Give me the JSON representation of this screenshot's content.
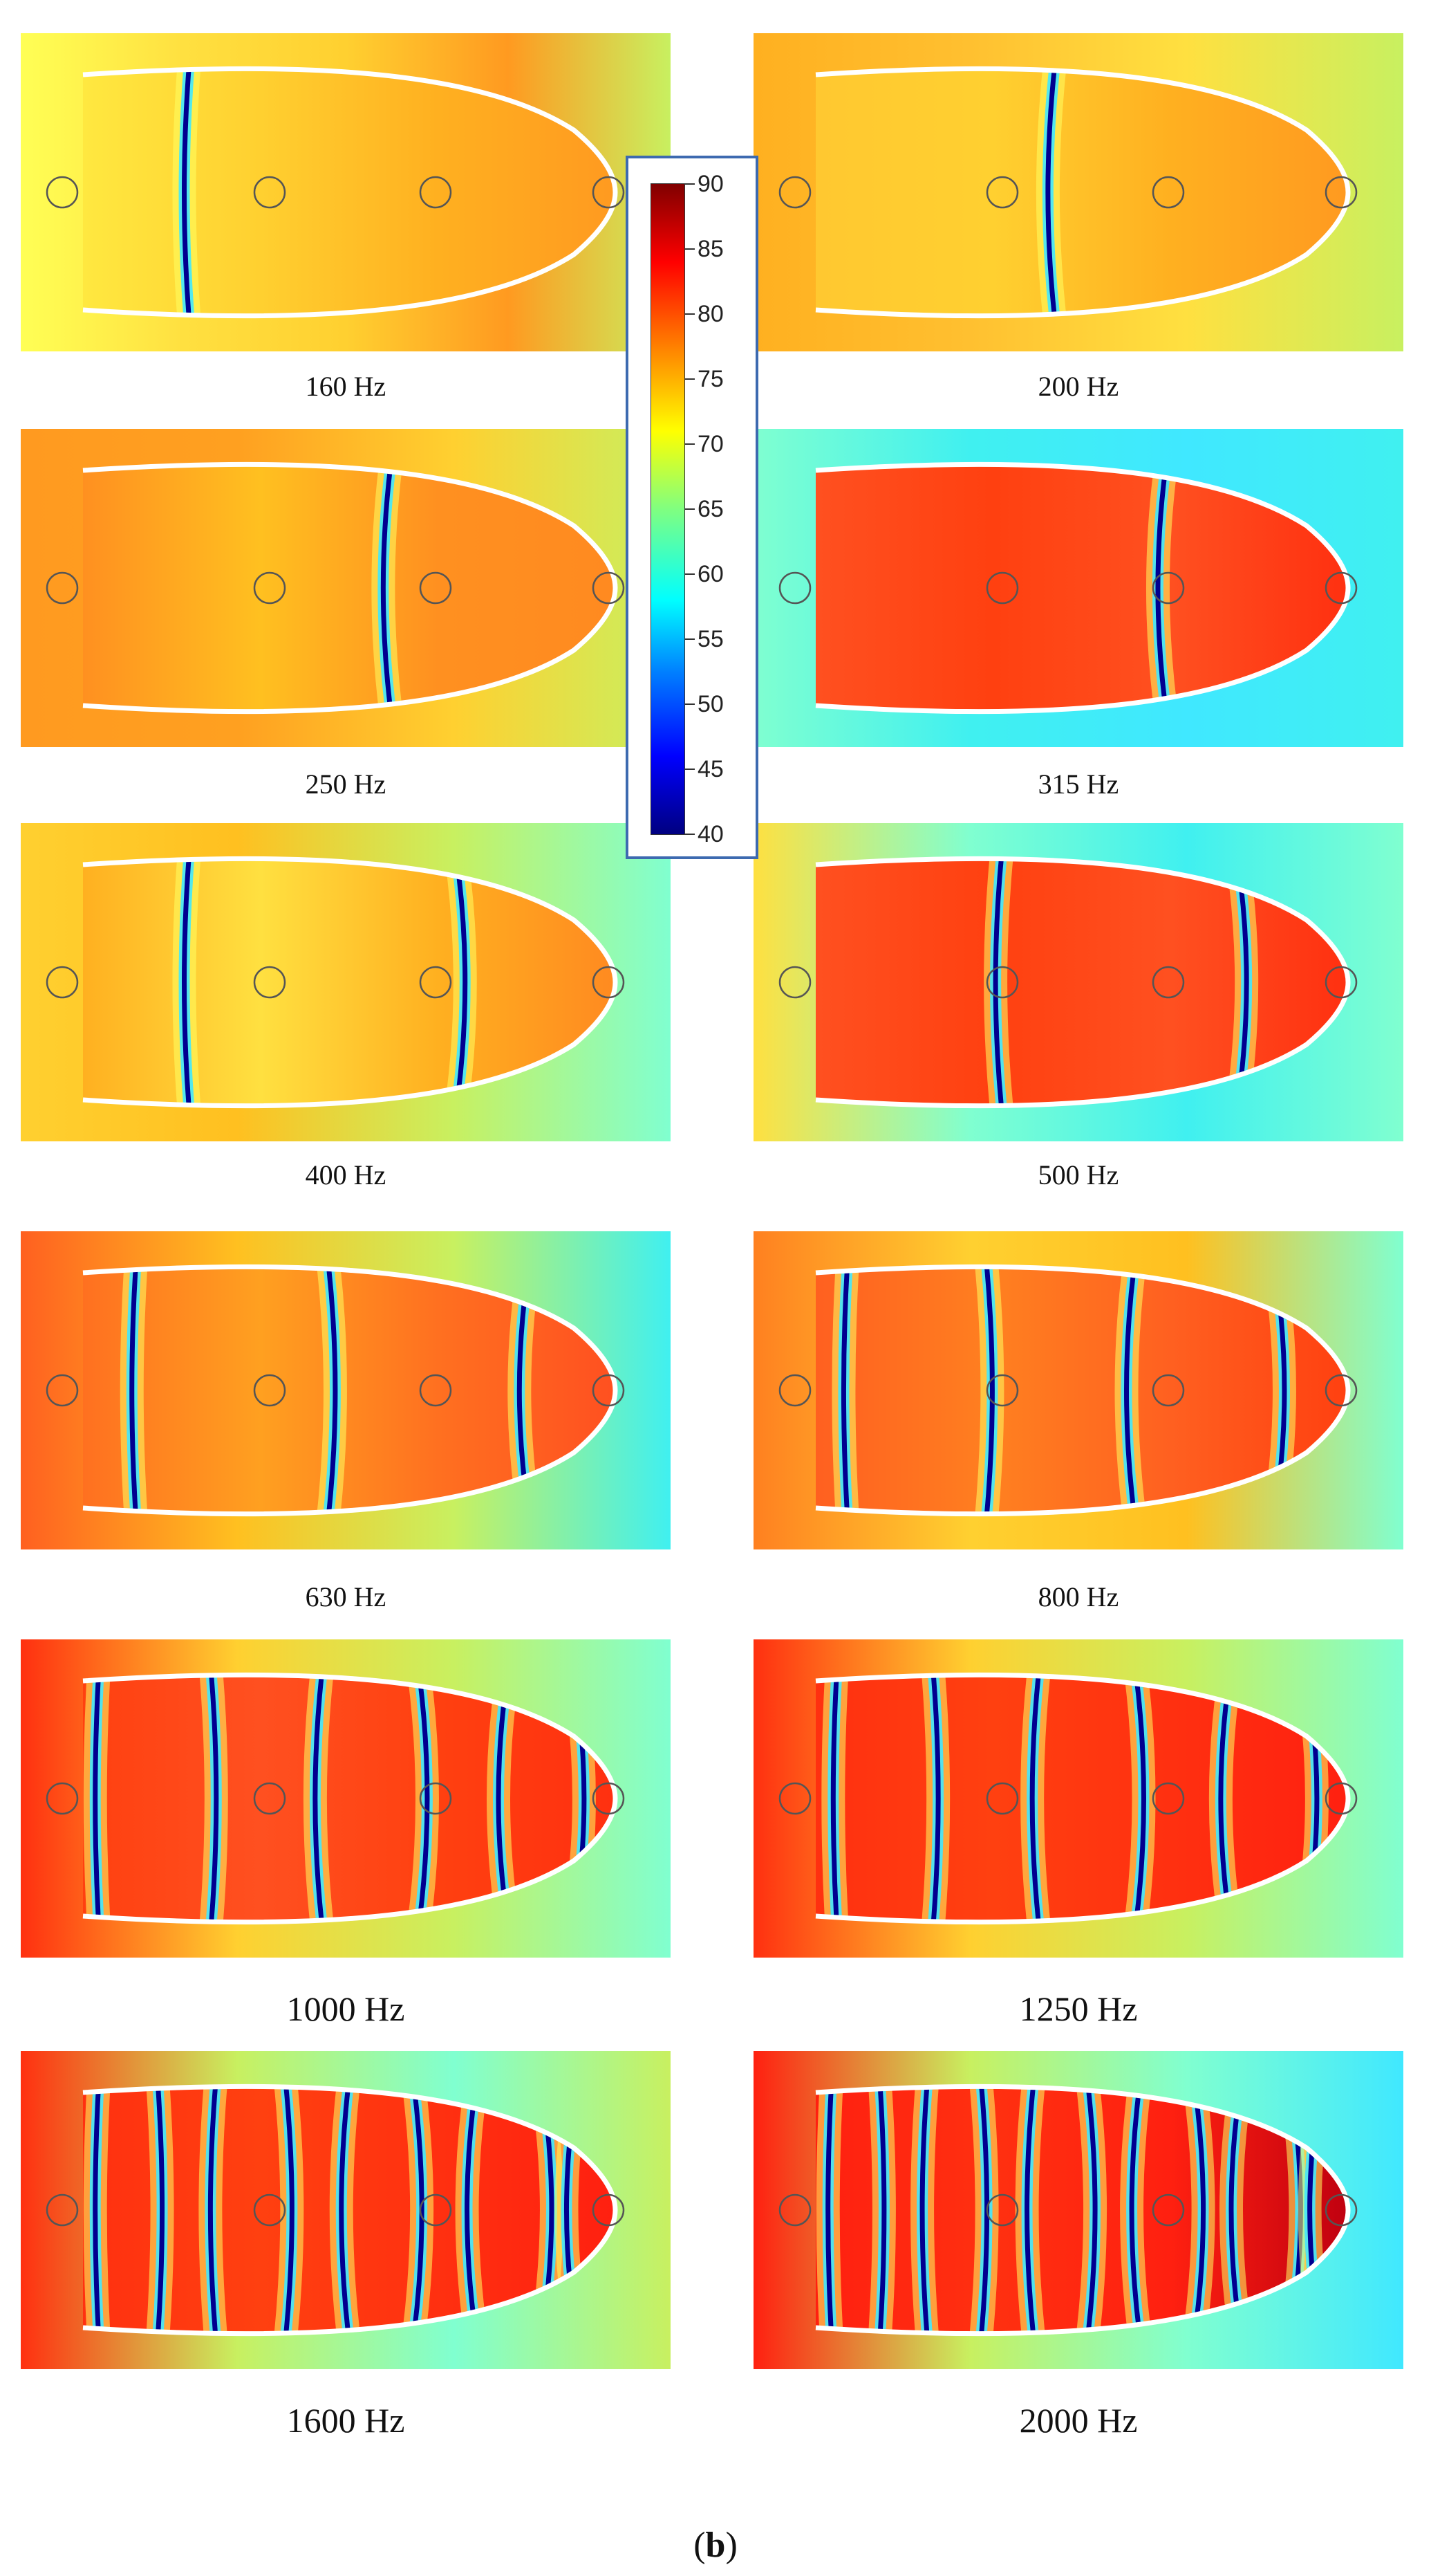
{
  "figure_label": "b",
  "panels": [
    {
      "caption": "160 Hz",
      "caption_size": "small"
    },
    {
      "caption": "200 Hz",
      "caption_size": "small"
    },
    {
      "caption": "250 Hz",
      "caption_size": "small"
    },
    {
      "caption": "315 Hz",
      "caption_size": "small"
    },
    {
      "caption": "400 Hz",
      "caption_size": "small"
    },
    {
      "caption": "500 Hz",
      "caption_size": "small"
    },
    {
      "caption": "630 Hz",
      "caption_size": "small"
    },
    {
      "caption": "800 Hz",
      "caption_size": "small"
    },
    {
      "caption": "1000 Hz",
      "caption_size": "large"
    },
    {
      "caption": "1250 Hz",
      "caption_size": "large"
    },
    {
      "caption": "1600 Hz",
      "caption_size": "large"
    },
    {
      "caption": "2000 Hz",
      "caption_size": "large"
    }
  ],
  "colorbar": {
    "min": 40,
    "max": 90,
    "ticks": [
      "90",
      "85",
      "80",
      "75",
      "70",
      "65",
      "60",
      "55",
      "50",
      "45",
      "40"
    ],
    "colors": [
      "#000080",
      "#0000ff",
      "#0080ff",
      "#00ffff",
      "#80ff80",
      "#ffff00",
      "#ff8000",
      "#ff0000",
      "#800000"
    ]
  },
  "colors": {
    "outline": "#ffffff",
    "receiver_circle": "#555555",
    "frame": "#3d6ab0"
  }
}
